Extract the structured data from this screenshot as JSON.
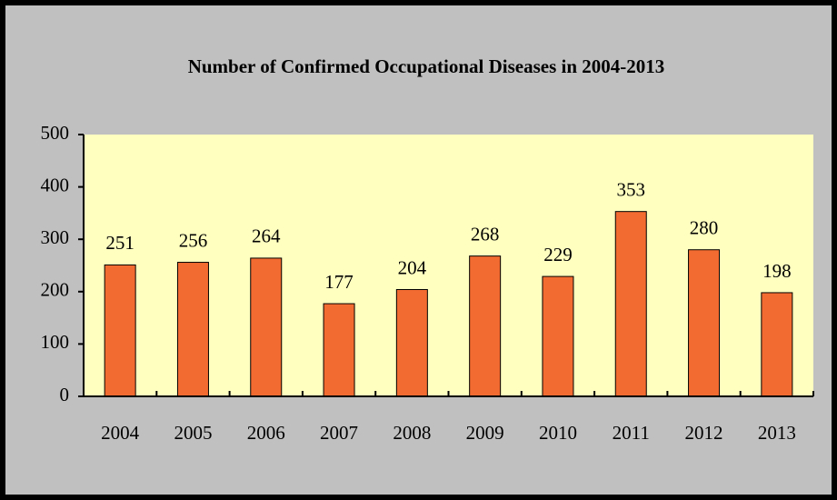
{
  "chart_data": {
    "type": "bar",
    "title": "Number of Confirmed Occupational Diseases in 2004-2013",
    "categories": [
      "2004",
      "2005",
      "2006",
      "2007",
      "2008",
      "2009",
      "2010",
      "2011",
      "2012",
      "2013"
    ],
    "values": [
      251,
      256,
      264,
      177,
      204,
      268,
      229,
      353,
      280,
      198
    ],
    "color": "#f26b30",
    "ylim": [
      0,
      500
    ],
    "yticks": [
      0,
      100,
      200,
      300,
      400,
      500
    ],
    "grid": false
  }
}
